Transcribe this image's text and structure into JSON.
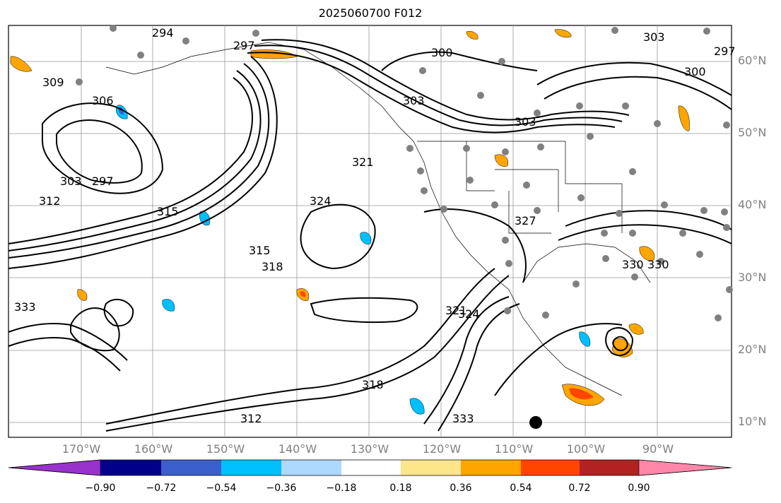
{
  "title": "2025060700 F012",
  "lat_labels": [
    {
      "text": "60°N",
      "lat": 60
    },
    {
      "text": "50°N",
      "lat": 50
    },
    {
      "text": "40°N",
      "lat": 40
    },
    {
      "text": "30°N",
      "lat": 30
    },
    {
      "text": "20°N",
      "lat": 20
    },
    {
      "text": "10°N",
      "lat": 10
    }
  ],
  "lon_labels": [
    {
      "text": "170°W",
      "lon": -170
    },
    {
      "text": "160°W",
      "lon": -160
    },
    {
      "text": "150°W",
      "lon": -150
    },
    {
      "text": "140°W",
      "lon": -140
    },
    {
      "text": "130°W",
      "lon": -130
    },
    {
      "text": "120°W",
      "lon": -120
    },
    {
      "text": "110°W",
      "lon": -110
    },
    {
      "text": "100°W",
      "lon": -100
    },
    {
      "text": "90°W",
      "lon": -90
    }
  ],
  "colorbar": {
    "colors": [
      "#9932cc",
      "#00008b",
      "#3a5fcd",
      "#00bfff",
      "#add8ff",
      "#ffffff",
      "#fde68a",
      "#ffa500",
      "#ff4500",
      "#b22222",
      "#ff88aa"
    ],
    "tick_labels": [
      "−0.90",
      "−0.72",
      "−0.54",
      "−0.36",
      "−0.18",
      "0.18",
      "0.36",
      "0.54",
      "0.72",
      "0.90"
    ]
  },
  "contour_labels": [
    "294",
    "297",
    "300",
    "303",
    "297",
    "300",
    "303",
    "306",
    "309",
    "312",
    "315",
    "318",
    "321",
    "324",
    "327",
    "330",
    "333",
    "303",
    "297",
    "318",
    "315",
    "324",
    "321",
    "330",
    "333",
    "312",
    "303"
  ]
}
